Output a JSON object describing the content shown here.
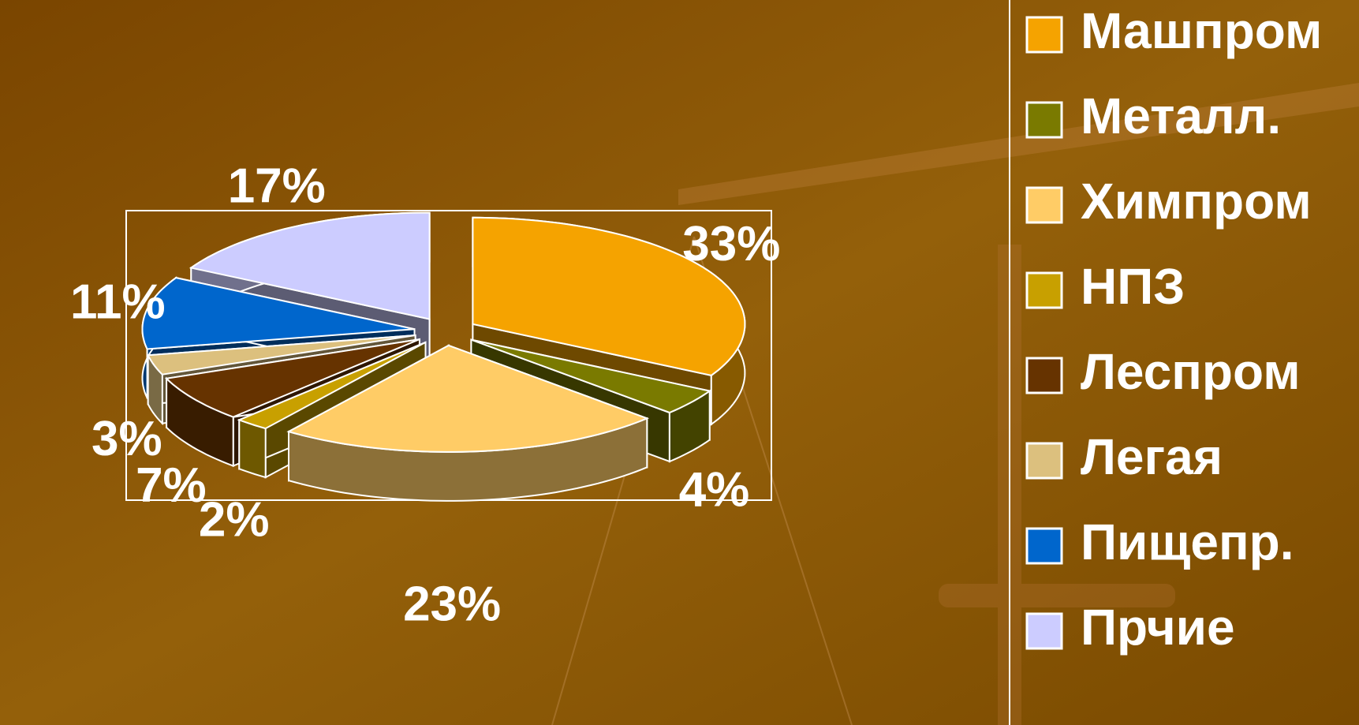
{
  "chart_data": {
    "type": "pie",
    "categories": [
      "Машпром",
      "Металл.",
      "Химпром",
      "НПЗ",
      "Леспром",
      "Легая",
      "Пищепр.",
      "Прчие"
    ],
    "values": [
      33,
      4,
      23,
      2,
      7,
      3,
      11,
      17
    ],
    "value_labels": [
      "33%",
      "4%",
      "23%",
      "2%",
      "7%",
      "3%",
      "11%",
      "17%"
    ],
    "colors": [
      "#f5a300",
      "#7a7a00",
      "#ffcc66",
      "#c8a000",
      "#663300",
      "#dcc07e",
      "#0066cc",
      "#ccccff"
    ],
    "legend": "right"
  }
}
